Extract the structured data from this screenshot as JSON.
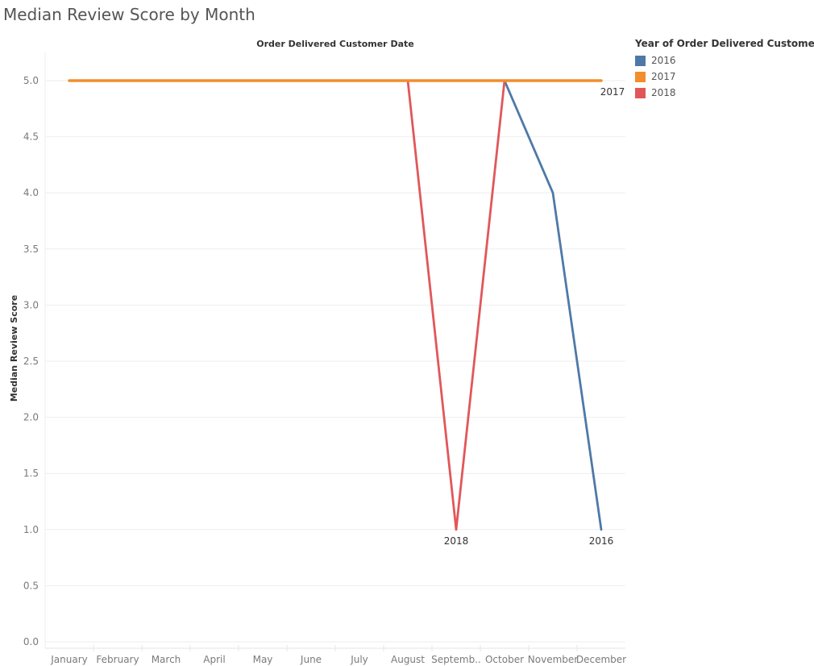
{
  "title": "Median Review Score by Month",
  "legend": {
    "title": "Year of Order Delivered Customer Date",
    "items": [
      {
        "label": "2016",
        "color": "#4e79a7"
      },
      {
        "label": "2017",
        "color": "#f28e2b"
      },
      {
        "label": "2018",
        "color": "#e15759"
      }
    ]
  },
  "chart_data": {
    "type": "line",
    "title": "Median Review Score by Month",
    "xlabel": "Order Delivered Customer Date",
    "ylabel": "Median Review Score",
    "categories": [
      "January",
      "February",
      "March",
      "April",
      "May",
      "June",
      "July",
      "August",
      "Septemb..",
      "October",
      "November",
      "December"
    ],
    "ylim": [
      0,
      5.2
    ],
    "yticks": [
      "0.0",
      "0.5",
      "1.0",
      "1.5",
      "2.0",
      "2.5",
      "3.0",
      "3.5",
      "4.0",
      "4.5",
      "5.0"
    ],
    "grid": true,
    "legend_position": "right",
    "series": [
      {
        "name": "2016",
        "color": "#4e79a7",
        "values": [
          null,
          null,
          null,
          null,
          null,
          null,
          null,
          null,
          null,
          5.0,
          4.0,
          1.0
        ],
        "end_label": "2016"
      },
      {
        "name": "2017",
        "color": "#f28e2b",
        "values": [
          5.0,
          5.0,
          5.0,
          5.0,
          5.0,
          5.0,
          5.0,
          5.0,
          5.0,
          5.0,
          5.0,
          5.0
        ],
        "end_label": "2017"
      },
      {
        "name": "2018",
        "color": "#e15759",
        "values": [
          5.0,
          5.0,
          5.0,
          5.0,
          5.0,
          5.0,
          5.0,
          5.0,
          1.0,
          5.0,
          null,
          null
        ],
        "end_label": "2018"
      }
    ]
  }
}
